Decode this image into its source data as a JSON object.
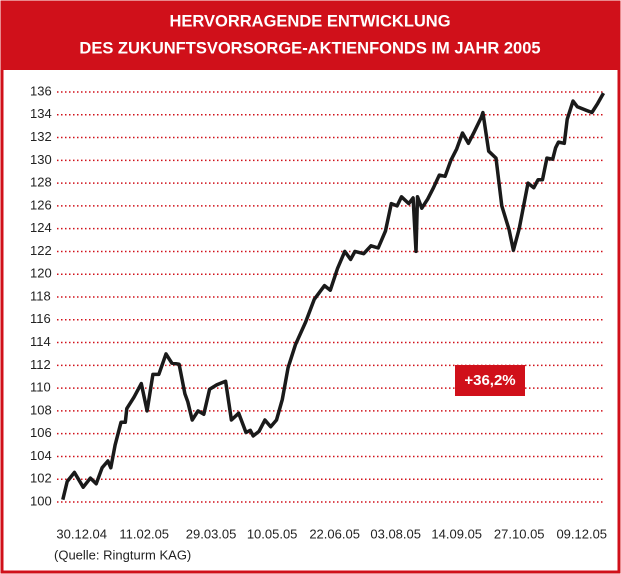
{
  "chart_data": {
    "type": "line",
    "title": [
      "HERVORRAGENDE ENTWICKLUNG",
      "DES ZUKUNFTSVORSORGE-AKTIENFONDS IM JAHR 2005"
    ],
    "annotation": "+36,2%",
    "source": "(Quelle: Ringturm KAG)",
    "color": "#1a1a1a",
    "grid_color": "#d0101a",
    "grid": true,
    "x": [
      -13,
      -10,
      -5,
      1,
      6,
      10,
      14,
      18,
      20,
      23,
      27,
      30,
      31,
      36,
      41,
      45,
      49,
      53,
      58,
      62,
      67,
      71,
      73,
      76,
      80,
      84,
      88,
      93,
      99,
      103,
      108,
      113,
      116,
      118,
      122,
      126,
      130,
      134,
      138,
      142,
      147,
      154,
      160,
      167,
      171,
      176,
      181,
      185,
      188,
      194,
      199,
      204,
      209,
      213,
      217,
      220,
      225,
      228,
      230,
      231,
      234,
      238,
      242,
      246,
      250,
      254,
      258,
      262,
      266,
      270,
      275,
      276,
      280,
      285,
      289,
      294,
      297,
      301,
      304,
      307,
      311,
      314,
      317,
      320,
      324,
      326,
      328,
      332,
      334,
      338,
      341,
      347,
      351,
      355,
      359
    ],
    "values": [
      100.2,
      101.8,
      102.6,
      101.3,
      102.1,
      101.6,
      103,
      103.6,
      103,
      105,
      107,
      107,
      108.2,
      109.2,
      110.4,
      108,
      111.2,
      111.2,
      113,
      112.2,
      112.1,
      109.5,
      108.8,
      107.2,
      108,
      107.7,
      109.9,
      110.3,
      110.6,
      107.2,
      107.8,
      106.1,
      106.3,
      105.8,
      106.2,
      107.2,
      106.6,
      107.2,
      109,
      111.8,
      113.8,
      115.8,
      117.8,
      119,
      118.6,
      120.5,
      122,
      121.3,
      122,
      121.8,
      122.5,
      122.3,
      123.8,
      126.2,
      126,
      126.8,
      126.2,
      126.7,
      122,
      126.8,
      125.8,
      126.6,
      127.6,
      128.7,
      128.6,
      130,
      131,
      132.4,
      131.5,
      132.5,
      133.8,
      134.2,
      130.8,
      130.2,
      126,
      123.9,
      122.1,
      124,
      126,
      128,
      127.6,
      128.3,
      128.3,
      130.2,
      130.1,
      131.1,
      131.6,
      131.5,
      133.6,
      135.2,
      134.7,
      134.4,
      134.2,
      135,
      135.9
    ],
    "xlim": [
      -17,
      360
    ],
    "xticks": [
      {
        "value": 0,
        "label": "30.12.04"
      },
      {
        "value": 43,
        "label": "11.02.05"
      },
      {
        "value": 89,
        "label": "29.03.05"
      },
      {
        "value": 131,
        "label": "10.05.05"
      },
      {
        "value": 174,
        "label": "22.06.05"
      },
      {
        "value": 216,
        "label": "03.08.05"
      },
      {
        "value": 258,
        "label": "14.09.05"
      },
      {
        "value": 301,
        "label": "27.10.05"
      },
      {
        "value": 344,
        "label": "09.12.05"
      }
    ],
    "ylim": [
      100,
      136
    ],
    "yticks": [
      100,
      102,
      104,
      106,
      108,
      110,
      112,
      114,
      116,
      118,
      120,
      122,
      124,
      126,
      128,
      130,
      132,
      134,
      136
    ]
  }
}
